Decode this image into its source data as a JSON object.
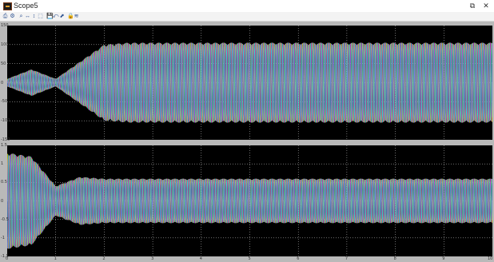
{
  "window": {
    "title": "Scope5",
    "controls": {
      "restore": "⧉",
      "close": "✕"
    }
  },
  "toolbar": {
    "icons": [
      "print-icon",
      "params-icon",
      "zoom-icon",
      "zoom-x-icon",
      "zoom-y-icon",
      "autoscale-icon",
      "save-axes-icon",
      "restore-axes-icon",
      "floating-scope-icon",
      "lock-axes-icon",
      "signal-selection-icon"
    ],
    "glyphs": [
      "⎙",
      "⚙",
      "⌕",
      "↔",
      "↕",
      "⬚",
      "💾",
      "⤺",
      "⬈",
      "🔒",
      "≋"
    ]
  },
  "colors": {
    "background": "#000000",
    "frame": "#b9b9b9",
    "grid": "#d9d9d9",
    "series": [
      "#e6e61a",
      "#e619e6",
      "#19e6e6"
    ]
  },
  "chart_data": [
    {
      "type": "line",
      "grid": true,
      "ylim": [
        -150,
        150
      ],
      "ytick_labels": [
        "150",
        "100",
        "50",
        "0",
        "-50",
        "-100",
        "-150"
      ],
      "series": [
        {
          "color": "#e6e61a",
          "envelope": [
            [
              0,
              10
            ],
            [
              0.5,
              35
            ],
            [
              1,
              10
            ],
            [
              1.5,
              55
            ],
            [
              2,
              100
            ],
            [
              2.5,
              105
            ],
            [
              10,
              105
            ]
          ]
        },
        {
          "color": "#e619e6",
          "envelope": [
            [
              0,
              10
            ],
            [
              0.5,
              35
            ],
            [
              1,
              10
            ],
            [
              1.5,
              55
            ],
            [
              2,
              100
            ],
            [
              2.5,
              105
            ],
            [
              10,
              105
            ]
          ]
        },
        {
          "color": "#19e6e6",
          "envelope": [
            [
              0,
              10
            ],
            [
              0.5,
              35
            ],
            [
              1,
              10
            ],
            [
              1.5,
              55
            ],
            [
              2,
              100
            ],
            [
              2.5,
              105
            ],
            [
              10,
              105
            ]
          ]
        }
      ]
    },
    {
      "type": "line",
      "grid": true,
      "ylim": [
        -1.5,
        1.5
      ],
      "ytick_labels": [
        "1.5",
        "1",
        "0.5",
        "0",
        "-0.5",
        "-1",
        "-1.5"
      ],
      "xlim": [
        0,
        10
      ],
      "xtick_labels": [
        "0",
        "1",
        "2",
        "3",
        "4",
        "5",
        "6",
        "7",
        "8",
        "9",
        "10"
      ],
      "series": [
        {
          "color": "#e6e61a",
          "envelope": [
            [
              0,
              1.3
            ],
            [
              0.5,
              1.2
            ],
            [
              1,
              0.4
            ],
            [
              1.5,
              0.65
            ],
            [
              2,
              0.6
            ],
            [
              10,
              0.6
            ]
          ]
        },
        {
          "color": "#e619e6",
          "envelope": [
            [
              0,
              1.3
            ],
            [
              0.5,
              1.2
            ],
            [
              1,
              0.4
            ],
            [
              1.5,
              0.65
            ],
            [
              2,
              0.6
            ],
            [
              10,
              0.6
            ]
          ]
        },
        {
          "color": "#19e6e6",
          "envelope": [
            [
              0,
              1.3
            ],
            [
              0.5,
              1.2
            ],
            [
              1,
              0.4
            ],
            [
              1.5,
              0.65
            ],
            [
              2,
              0.6
            ],
            [
              10,
              0.6
            ]
          ]
        }
      ]
    }
  ]
}
